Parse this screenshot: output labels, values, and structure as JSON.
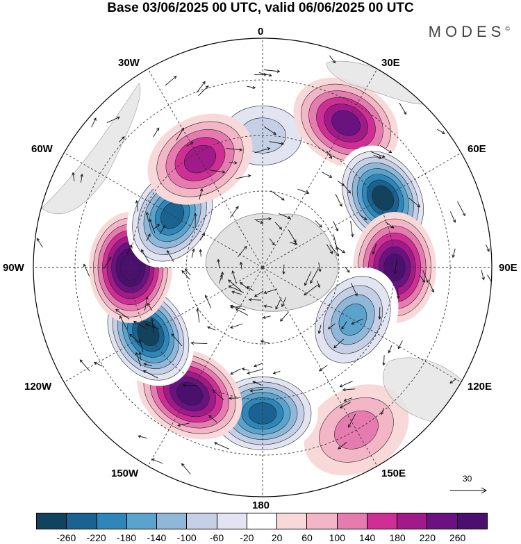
{
  "title": "Base 03/06/2025 00 UTC, valid 06/06/2025 00 UTC",
  "brand": "MODES",
  "brand_mark": "©",
  "longitude_labels": {
    "top": "0",
    "top_right": "30E",
    "right_upper": "60E",
    "right": "90E",
    "right_lower": "120E",
    "bottom_right": "150E",
    "bottom": "180",
    "bottom_left": "150W",
    "left_lower": "120W",
    "left": "90W",
    "left_upper": "60W",
    "top_left": "30W"
  },
  "vector_reference": "30",
  "colorbar": {
    "ticks": [
      "-260",
      "-220",
      "-180",
      "-140",
      "-100",
      "-60",
      "-20",
      "20",
      "60",
      "100",
      "140",
      "180",
      "220",
      "260"
    ],
    "colors": [
      "#12435e",
      "#1a6390",
      "#2f86b8",
      "#5aa3cc",
      "#8fb7d8",
      "#c5cfe6",
      "#e3e4f1",
      "#ffffff",
      "#f8d8d8",
      "#f3b6c6",
      "#e67bb0",
      "#cf2f95",
      "#a11a8a",
      "#6a1380",
      "#4b0f70"
    ]
  },
  "map_data": {
    "projection": "south-polar-stereographic",
    "anomaly_centers": [
      {
        "lon_label": "0",
        "value": -60
      },
      {
        "lon_label": "30E",
        "value": 180
      },
      {
        "lon_label": "60E",
        "value": -260
      },
      {
        "lon_label": "90E",
        "value": 220
      },
      {
        "lon_label": "120E",
        "value": -140
      },
      {
        "lon_label": "150E",
        "value": 60
      },
      {
        "lon_label": "180",
        "value": -220
      },
      {
        "lon_label": "150W",
        "value": 220
      },
      {
        "lon_label": "120W",
        "value": -260
      },
      {
        "lon_label": "90W",
        "value": 260
      },
      {
        "lon_label": "60W",
        "value": -220
      },
      {
        "lon_label": "30W",
        "value": 140
      }
    ]
  }
}
